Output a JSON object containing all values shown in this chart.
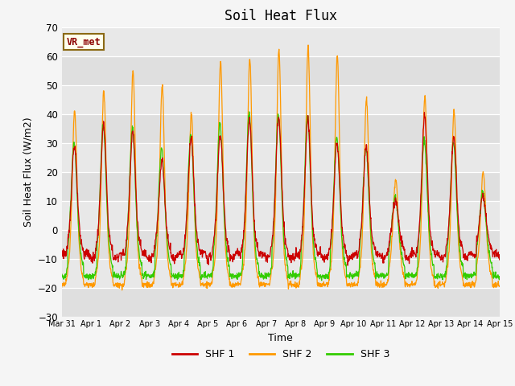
{
  "title": "Soil Heat Flux",
  "xlabel": "Time",
  "ylabel": "Soil Heat Flux (W/m2)",
  "ylim": [
    -30,
    70
  ],
  "yticks": [
    -30,
    -20,
    -10,
    0,
    10,
    20,
    30,
    40,
    50,
    60,
    70
  ],
  "xtick_labels": [
    "Mar 31",
    "Apr 1",
    "Apr 2",
    "Apr 3",
    "Apr 4",
    "Apr 5",
    "Apr 6",
    "Apr 7",
    "Apr 8",
    "Apr 9",
    "Apr 10",
    "Apr 11",
    "Apr 12",
    "Apr 13",
    "Apr 14",
    "Apr 15"
  ],
  "colors": {
    "SHF 1": "#cc0000",
    "SHF 2": "#ff9900",
    "SHF 3": "#33cc00"
  },
  "legend_labels": [
    "SHF 1",
    "SHF 2",
    "SHF 3"
  ],
  "annotation_text": "VR_met",
  "annotation_color": "#8b0000",
  "annotation_bg": "#ffffee",
  "background_color": "#e8e8e8",
  "grid_color": "#ffffff",
  "title_fontsize": 12,
  "axis_fontsize": 9,
  "shf2_day_peaks": [
    41,
    48,
    55,
    50,
    40,
    58,
    59,
    62,
    63,
    60,
    45,
    17,
    46,
    41,
    20
  ],
  "shf1_day_peaks": [
    29,
    36,
    34,
    24,
    32,
    33,
    38,
    39,
    38,
    30,
    29,
    10,
    39,
    32,
    12
  ],
  "shf3_day_peaks": [
    30,
    36,
    35,
    28,
    33,
    37,
    40,
    40,
    39,
    32,
    28,
    11,
    31,
    30,
    13
  ],
  "night_base_shf1": -9,
  "night_base_shf2": -19,
  "night_base_shf3": -16,
  "figsize": [
    6.4,
    4.8
  ],
  "dpi": 100
}
